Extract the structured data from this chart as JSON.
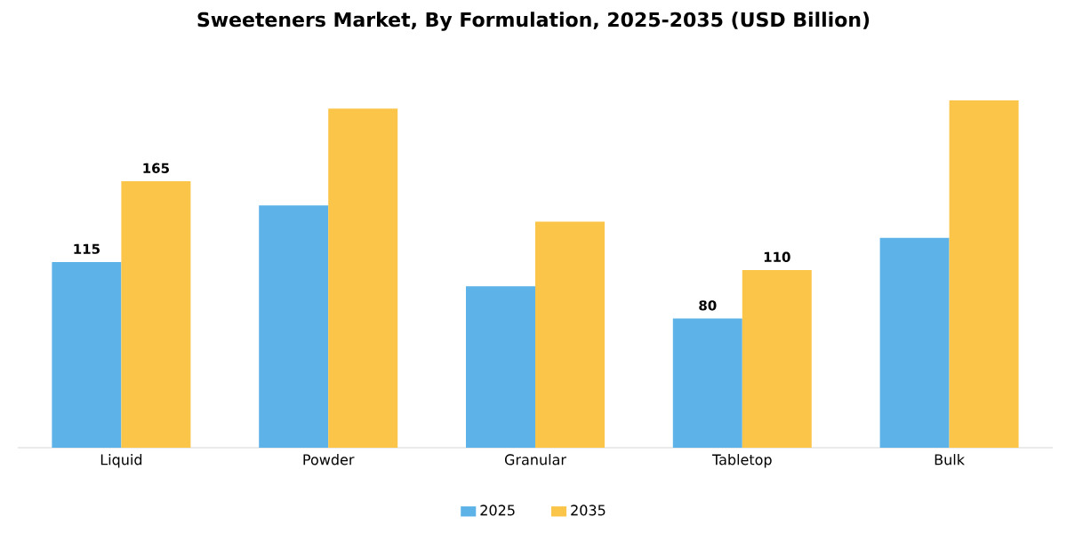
{
  "chart_data": {
    "type": "bar",
    "title": "Sweeteners Market, By Formulation, 2025-2035 (USD Billion)",
    "categories": [
      "Liquid",
      "Powder",
      "Granular",
      "Tabletop",
      "Bulk"
    ],
    "series": [
      {
        "name": "2025",
        "color": "#5db3e8",
        "values": [
          115,
          150,
          100,
          80,
          130
        ],
        "value_labels": [
          "115",
          null,
          null,
          "80",
          null
        ]
      },
      {
        "name": "2035",
        "color": "#fbc54a",
        "values": [
          165,
          210,
          140,
          110,
          215
        ],
        "value_labels": [
          "165",
          null,
          null,
          "110",
          null
        ]
      }
    ],
    "legend": "bottom"
  }
}
